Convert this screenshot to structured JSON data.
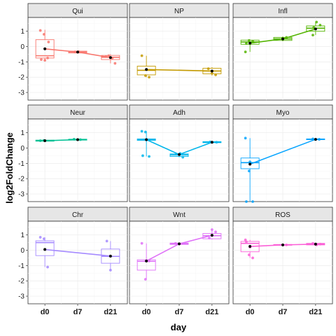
{
  "chart_data": {
    "type": "box",
    "facets_layout": "3x3",
    "xlabel": "day",
    "ylabel": "log2FoldChange",
    "categories": [
      "d0",
      "d7",
      "d21"
    ],
    "ylim": [
      -3.5,
      1.9
    ],
    "yticks": [
      1,
      0,
      -1,
      -2,
      -3
    ],
    "grid": true,
    "legend": "none",
    "panels": [
      {
        "name": "Qui",
        "color": "#F8766D",
        "boxes": [
          {
            "day": "d0",
            "q1": -0.75,
            "median": -0.6,
            "q3": 0.45,
            "lo": -0.9,
            "hi": 1.1
          },
          {
            "day": "d7",
            "q1": -0.42,
            "median": -0.36,
            "q3": -0.3,
            "lo": -0.45,
            "hi": -0.28
          },
          {
            "day": "d21",
            "q1": -0.85,
            "median": -0.7,
            "q3": -0.58,
            "lo": -1.1,
            "hi": -0.5
          }
        ],
        "means": [
          -0.15,
          -0.36,
          -0.72
        ],
        "points": [
          [
            0,
            1.05
          ],
          [
            0,
            0.8
          ],
          [
            0,
            -0.75
          ],
          [
            0,
            -0.85
          ],
          [
            0,
            -0.9
          ],
          [
            0,
            0.3
          ],
          [
            1,
            -0.35
          ],
          [
            1,
            -0.33
          ],
          [
            2,
            -1.1
          ],
          [
            2,
            -0.6
          ],
          [
            2,
            -0.75
          ],
          [
            2,
            -0.65
          ]
        ]
      },
      {
        "name": "NP",
        "color": "#C49A00",
        "boxes": [
          {
            "day": "d0",
            "q1": -1.85,
            "median": -1.55,
            "q3": -1.28,
            "lo": -2.0,
            "hi": -0.6
          },
          {
            "day": "d21",
            "q1": -1.78,
            "median": -1.6,
            "q3": -1.42,
            "lo": -1.9,
            "hi": -1.35
          }
        ],
        "means": [
          -1.5,
          null,
          -1.6
        ],
        "points": [
          [
            0,
            -0.6
          ],
          [
            0,
            -1.9
          ],
          [
            0,
            -2.0
          ],
          [
            2,
            -1.45
          ],
          [
            2,
            -1.75
          ],
          [
            2,
            -1.85
          ]
        ]
      },
      {
        "name": "Infl",
        "color": "#53B400",
        "boxes": [
          {
            "day": "d0",
            "q1": 0.15,
            "median": 0.3,
            "q3": 0.42,
            "lo": -0.35,
            "hi": 0.45
          },
          {
            "day": "d7",
            "q1": 0.4,
            "median": 0.5,
            "q3": 0.6,
            "lo": 0.35,
            "hi": 0.65
          },
          {
            "day": "d21",
            "q1": 1.0,
            "median": 1.2,
            "q3": 1.35,
            "lo": 0.75,
            "hi": 1.6
          }
        ],
        "means": [
          0.22,
          0.5,
          1.15
        ],
        "points": [
          [
            0,
            -0.35
          ],
          [
            0,
            0.4
          ],
          [
            0,
            0.35
          ],
          [
            0,
            0.2
          ],
          [
            1,
            0.55
          ],
          [
            1,
            0.6
          ],
          [
            2,
            0.75
          ],
          [
            2,
            1.6
          ],
          [
            2,
            1.4
          ],
          [
            2,
            1.25
          ]
        ]
      },
      {
        "name": "Neur",
        "color": "#00C094",
        "boxes": [
          {
            "day": "d0",
            "q1": 0.45,
            "median": 0.48,
            "q3": 0.52,
            "lo": 0.44,
            "hi": 0.53
          },
          {
            "day": "d7",
            "q1": 0.52,
            "median": 0.55,
            "q3": 0.58,
            "lo": 0.5,
            "hi": 0.6
          }
        ],
        "means": [
          0.48,
          0.55,
          null
        ],
        "points": [
          [
            0,
            0.48
          ],
          [
            0,
            0.5
          ],
          [
            1,
            0.55
          ],
          [
            1,
            0.58
          ]
        ]
      },
      {
        "name": "Adh",
        "color": "#00B6EB",
        "boxes": [
          {
            "day": "d0",
            "q1": 0.5,
            "median": 0.55,
            "q3": 0.6,
            "lo": -0.55,
            "hi": 1.1
          },
          {
            "day": "d7",
            "q1": -0.55,
            "median": -0.45,
            "q3": -0.38,
            "lo": -0.6,
            "hi": -0.35
          },
          {
            "day": "d21",
            "q1": 0.35,
            "median": 0.38,
            "q3": 0.42,
            "lo": 0.34,
            "hi": 0.43
          }
        ],
        "means": [
          0.55,
          -0.42,
          0.38
        ],
        "points": [
          [
            0,
            1.1
          ],
          [
            0,
            1.05
          ],
          [
            0,
            -0.55
          ],
          [
            0,
            -0.5
          ],
          [
            0,
            0.55
          ],
          [
            1,
            -0.6
          ],
          [
            1,
            -0.4
          ],
          [
            1,
            -0.35
          ],
          [
            2,
            0.38
          ],
          [
            2,
            0.4
          ]
        ]
      },
      {
        "name": "Myo",
        "color": "#06A4FF",
        "boxes": [
          {
            "day": "d0",
            "q1": -1.35,
            "median": -0.95,
            "q3": -0.65,
            "lo": -3.5,
            "hi": 0.65
          },
          {
            "day": "d21",
            "q1": 0.55,
            "median": 0.57,
            "q3": 0.6,
            "lo": 0.54,
            "hi": 0.62
          }
        ],
        "means": [
          -1.05,
          null,
          0.57
        ],
        "points": [
          [
            0,
            0.65
          ],
          [
            0,
            -1.5
          ],
          [
            0,
            -3.5
          ],
          [
            0,
            -3.5
          ],
          [
            0,
            -0.9
          ],
          [
            2,
            0.57
          ],
          [
            2,
            0.6
          ]
        ]
      },
      {
        "name": "Chr",
        "color": "#A58AFF",
        "boxes": [
          {
            "day": "d0",
            "q1": -0.35,
            "median": 0.5,
            "q3": 0.62,
            "lo": -1.1,
            "hi": 0.85
          },
          {
            "day": "d21",
            "q1": -0.85,
            "median": -0.4,
            "q3": 0.08,
            "lo": -1.3,
            "hi": 0.6
          }
        ],
        "means": [
          0.05,
          null,
          -0.38
        ],
        "points": [
          [
            0,
            0.85
          ],
          [
            0,
            0.75
          ],
          [
            0,
            -1.1
          ],
          [
            2,
            0.6
          ],
          [
            2,
            -1.3
          ]
        ]
      },
      {
        "name": "Wnt",
        "color": "#DF70F8",
        "boxes": [
          {
            "day": "d0",
            "q1": -1.3,
            "median": -0.72,
            "q3": -0.62,
            "lo": -1.9,
            "hi": 0.45
          },
          {
            "day": "d7",
            "q1": 0.38,
            "median": 0.42,
            "q3": 0.47,
            "lo": 0.36,
            "hi": 0.48
          },
          {
            "day": "d21",
            "q1": 0.75,
            "median": 0.95,
            "q3": 1.1,
            "lo": 0.7,
            "hi": 1.35
          }
        ],
        "means": [
          -0.7,
          0.42,
          0.98
        ],
        "points": [
          [
            0,
            0.45
          ],
          [
            0,
            -1.9
          ],
          [
            0,
            -0.7
          ],
          [
            1,
            0.45
          ],
          [
            2,
            1.35
          ],
          [
            2,
            1.2
          ],
          [
            2,
            0.8
          ]
        ]
      },
      {
        "name": "ROS",
        "color": "#FB61D7",
        "boxes": [
          {
            "day": "d0",
            "q1": -0.1,
            "median": 0.45,
            "q3": 0.58,
            "lo": -0.5,
            "hi": 0.68
          },
          {
            "day": "d7",
            "q1": 0.33,
            "median": 0.35,
            "q3": 0.38,
            "lo": 0.32,
            "hi": 0.4
          },
          {
            "day": "d21",
            "q1": 0.35,
            "median": 0.4,
            "q3": 0.45,
            "lo": 0.33,
            "hi": 0.48
          }
        ],
        "means": [
          0.25,
          0.35,
          0.4
        ],
        "points": [
          [
            0,
            0.68
          ],
          [
            0,
            -0.3
          ],
          [
            0,
            -0.5
          ],
          [
            0,
            0.55
          ],
          [
            0,
            0.2
          ],
          [
            1,
            0.35
          ],
          [
            2,
            0.45
          ],
          [
            2,
            0.35
          ],
          [
            2,
            0.4
          ]
        ]
      }
    ]
  }
}
